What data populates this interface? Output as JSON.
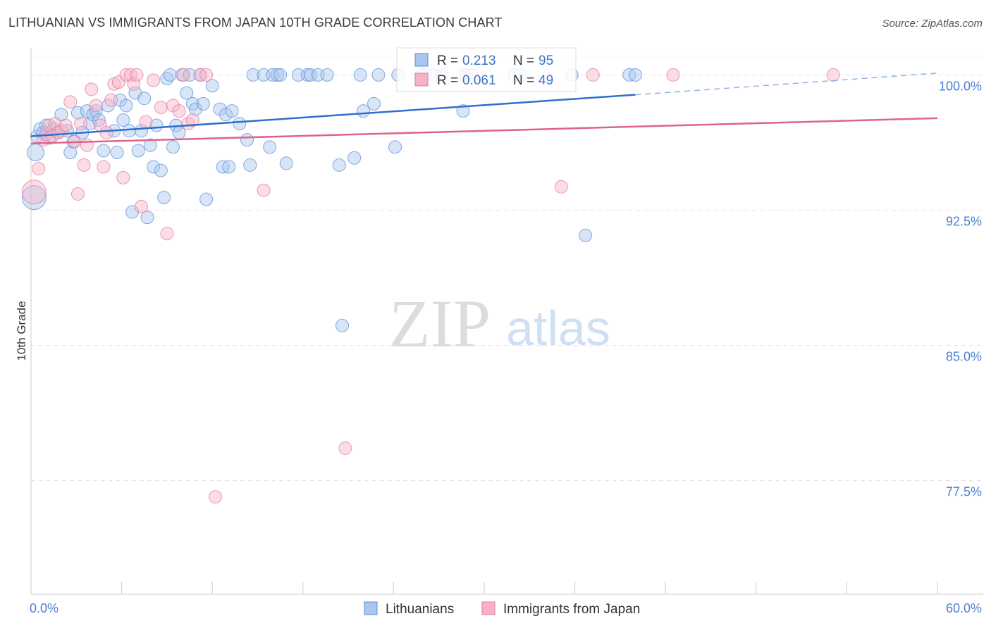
{
  "chart_data": {
    "type": "scatter",
    "title": "LITHUANIAN VS IMMIGRANTS FROM JAPAN 10TH GRADE CORRELATION CHART",
    "source": "Source: ZipAtlas.com",
    "xlabel": "",
    "ylabel": "10th Grade",
    "xlim": [
      0,
      60
    ],
    "ylim": [
      71.2,
      101.5
    ],
    "x_tick_labels": [
      "0.0%",
      "60.0%"
    ],
    "y_ticks": [
      100.0,
      92.5,
      85.0,
      77.5
    ],
    "y_tick_labels": [
      "100.0%",
      "92.5%",
      "85.0%",
      "77.5%"
    ],
    "grid": true,
    "watermark": {
      "zip": "ZIP",
      "atlas": "atlas"
    },
    "legend": {
      "items": [
        {
          "r_label": "R = ",
          "r_value": "0.213",
          "n_label": "N = ",
          "n_value": "95"
        },
        {
          "r_label": "R = ",
          "r_value": "0.061",
          "n_label": "N = ",
          "n_value": "49"
        }
      ]
    },
    "series": [
      {
        "name": "Lithuanians",
        "color": "#5b8fd9",
        "fill": "#a9c6ee",
        "trend": {
          "x0": 0,
          "y0": 96.6,
          "x1": 40,
          "y1": 98.9,
          "dash_x1": 60,
          "dash_y1": 100.1
        },
        "points": [
          [
            0.2,
            93.2,
            3
          ],
          [
            0.3,
            95.7,
            2
          ],
          [
            0.4,
            96.6,
            1
          ],
          [
            0.6,
            97.0,
            1
          ],
          [
            0.8,
            96.8,
            1
          ],
          [
            1.0,
            97.2,
            1
          ],
          [
            1.2,
            96.5,
            1
          ],
          [
            1.5,
            97.0,
            1
          ],
          [
            1.8,
            96.8,
            1
          ],
          [
            2.0,
            97.8,
            1
          ],
          [
            2.4,
            96.9,
            1
          ],
          [
            2.6,
            95.7,
            1
          ],
          [
            2.8,
            96.3,
            1
          ],
          [
            3.1,
            97.9,
            1
          ],
          [
            3.4,
            96.8,
            1
          ],
          [
            3.7,
            98.0,
            1
          ],
          [
            3.9,
            97.3,
            1
          ],
          [
            4.1,
            97.8,
            1
          ],
          [
            4.3,
            98.0,
            1
          ],
          [
            4.5,
            97.5,
            1
          ],
          [
            4.8,
            95.8,
            1
          ],
          [
            5.1,
            98.3,
            1
          ],
          [
            5.5,
            96.9,
            1
          ],
          [
            5.7,
            95.7,
            1
          ],
          [
            5.9,
            98.6,
            1
          ],
          [
            6.1,
            97.5,
            1
          ],
          [
            6.3,
            98.3,
            1
          ],
          [
            6.5,
            96.9,
            1
          ],
          [
            6.7,
            92.4,
            1
          ],
          [
            6.9,
            99.0,
            1
          ],
          [
            7.1,
            95.8,
            1
          ],
          [
            7.3,
            96.9,
            1
          ],
          [
            7.5,
            98.7,
            1
          ],
          [
            7.7,
            92.1,
            1
          ],
          [
            7.9,
            96.1,
            1
          ],
          [
            8.1,
            94.9,
            1
          ],
          [
            8.3,
            97.2,
            1
          ],
          [
            8.6,
            94.7,
            1
          ],
          [
            8.8,
            93.2,
            1
          ],
          [
            9.0,
            99.8,
            1
          ],
          [
            9.2,
            100.0,
            1
          ],
          [
            9.4,
            96.0,
            1
          ],
          [
            9.6,
            97.2,
            1
          ],
          [
            9.8,
            96.8,
            1
          ],
          [
            10.0,
            100.0,
            1
          ],
          [
            10.3,
            99.0,
            1
          ],
          [
            10.5,
            100.0,
            1
          ],
          [
            10.7,
            98.4,
            1
          ],
          [
            10.9,
            98.1,
            1
          ],
          [
            11.2,
            100.0,
            1
          ],
          [
            11.4,
            98.4,
            1
          ],
          [
            11.6,
            93.1,
            1
          ],
          [
            12.0,
            99.4,
            1
          ],
          [
            12.5,
            98.1,
            1
          ],
          [
            12.7,
            94.9,
            1
          ],
          [
            12.9,
            97.8,
            1
          ],
          [
            13.1,
            94.9,
            1
          ],
          [
            13.3,
            98.0,
            1
          ],
          [
            13.8,
            97.3,
            1
          ],
          [
            14.3,
            96.4,
            1
          ],
          [
            14.5,
            95.0,
            1
          ],
          [
            14.7,
            100.0,
            1
          ],
          [
            15.4,
            100.0,
            1
          ],
          [
            15.8,
            96.0,
            1
          ],
          [
            16.0,
            100.0,
            1
          ],
          [
            16.3,
            100.0,
            1
          ],
          [
            16.5,
            100.0,
            1
          ],
          [
            16.9,
            95.1,
            1
          ],
          [
            17.7,
            100.0,
            1
          ],
          [
            18.3,
            100.0,
            1
          ],
          [
            18.5,
            100.0,
            1
          ],
          [
            19.0,
            100.0,
            1
          ],
          [
            19.6,
            100.0,
            1
          ],
          [
            20.4,
            95.0,
            1
          ],
          [
            20.6,
            86.1,
            1
          ],
          [
            21.4,
            95.4,
            1
          ],
          [
            21.8,
            100.0,
            1
          ],
          [
            22.0,
            98.0,
            1
          ],
          [
            22.7,
            98.4,
            1
          ],
          [
            23.0,
            100.0,
            1
          ],
          [
            24.1,
            96.0,
            1
          ],
          [
            24.3,
            100.0,
            1
          ],
          [
            25.9,
            100.0,
            1
          ],
          [
            26.1,
            100.0,
            1
          ],
          [
            26.6,
            100.0,
            1
          ],
          [
            27.2,
            100.0,
            1
          ],
          [
            28.6,
            98.0,
            1
          ],
          [
            28.8,
            100.0,
            1
          ],
          [
            29.2,
            100.0,
            1
          ],
          [
            32.0,
            100.0,
            1
          ],
          [
            32.4,
            100.0,
            1
          ],
          [
            35.8,
            100.0,
            1
          ],
          [
            36.7,
            91.1,
            1
          ],
          [
            39.6,
            100.0,
            1
          ],
          [
            40.0,
            100.0,
            1
          ]
        ]
      },
      {
        "name": "Immigrants from Japan",
        "color": "#e5799b",
        "fill": "#f6b3c8",
        "trend": {
          "x0": 0,
          "y0": 96.2,
          "x1": 60,
          "y1": 97.6
        },
        "points": [
          [
            0.2,
            93.5,
            3
          ],
          [
            0.5,
            94.8,
            1
          ],
          [
            0.8,
            96.4,
            1
          ],
          [
            1.0,
            96.7,
            1
          ],
          [
            1.2,
            97.2,
            1
          ],
          [
            1.4,
            96.6,
            1
          ],
          [
            1.6,
            97.3,
            1
          ],
          [
            1.8,
            96.8,
            1
          ],
          [
            2.0,
            96.9,
            1
          ],
          [
            2.3,
            97.2,
            1
          ],
          [
            2.6,
            98.5,
            1
          ],
          [
            2.9,
            96.3,
            1
          ],
          [
            3.1,
            93.4,
            1
          ],
          [
            3.3,
            97.3,
            1
          ],
          [
            3.5,
            95.0,
            1
          ],
          [
            3.7,
            96.1,
            1
          ],
          [
            4.0,
            99.2,
            1
          ],
          [
            4.3,
            98.3,
            1
          ],
          [
            4.6,
            97.2,
            1
          ],
          [
            4.8,
            94.9,
            1
          ],
          [
            5.0,
            96.8,
            1
          ],
          [
            5.3,
            98.6,
            1
          ],
          [
            5.5,
            99.5,
            1
          ],
          [
            5.8,
            99.6,
            1
          ],
          [
            6.1,
            94.3,
            1
          ],
          [
            6.3,
            100.0,
            1
          ],
          [
            6.6,
            100.0,
            1
          ],
          [
            6.8,
            99.5,
            1
          ],
          [
            7.0,
            100.0,
            1
          ],
          [
            7.3,
            92.7,
            1
          ],
          [
            7.6,
            97.4,
            1
          ],
          [
            8.1,
            99.7,
            1
          ],
          [
            8.6,
            98.2,
            1
          ],
          [
            9.0,
            91.2,
            1
          ],
          [
            9.4,
            98.3,
            1
          ],
          [
            9.8,
            98.0,
            1
          ],
          [
            10.1,
            100.0,
            1
          ],
          [
            10.4,
            97.3,
            1
          ],
          [
            10.7,
            97.5,
            1
          ],
          [
            11.2,
            100.0,
            1
          ],
          [
            11.6,
            100.0,
            1
          ],
          [
            12.2,
            76.6,
            1
          ],
          [
            15.4,
            93.6,
            1
          ],
          [
            20.8,
            79.3,
            1
          ],
          [
            28.6,
            100.0,
            1
          ],
          [
            35.1,
            93.8,
            1
          ],
          [
            37.2,
            100.0,
            1
          ],
          [
            42.5,
            100.0,
            1
          ],
          [
            53.1,
            100.0,
            1
          ]
        ]
      }
    ]
  }
}
